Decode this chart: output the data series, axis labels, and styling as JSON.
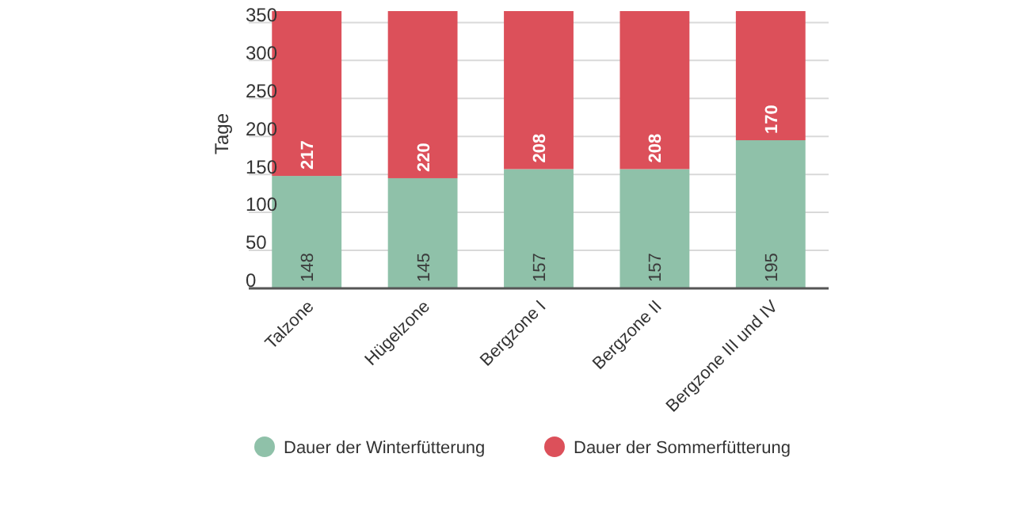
{
  "chart_data": {
    "type": "bar",
    "stacked": true,
    "ylabel": "Tage",
    "categories": [
      "Talzone",
      "Hügelzone",
      "Bergzone I",
      "Bergzone II",
      "Bergzone III und IV"
    ],
    "series": [
      {
        "name": "Dauer der Winterfütterung",
        "color": "#8fc1a9",
        "values": [
          148,
          145,
          157,
          157,
          195
        ]
      },
      {
        "name": "Dauer der Sommerfütterung",
        "color": "#dc505a",
        "values": [
          217,
          220,
          208,
          208,
          170
        ]
      }
    ],
    "ylim": [
      0,
      365
    ],
    "yticks": [
      0,
      50,
      100,
      150,
      200,
      250,
      300,
      350
    ],
    "grid": "y",
    "legend": "bottom",
    "data_labels": true
  }
}
